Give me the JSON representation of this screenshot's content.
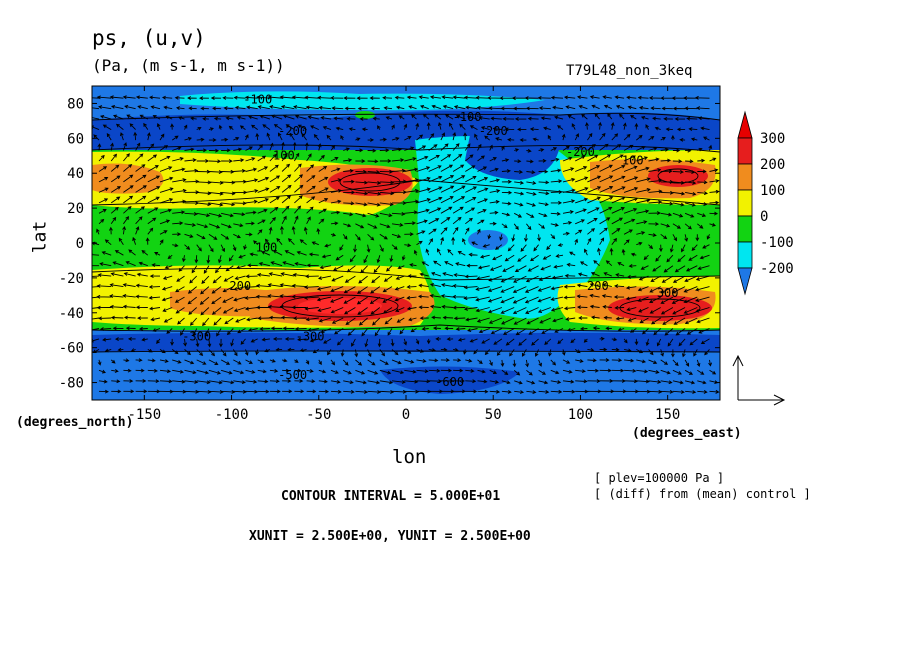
{
  "chart_data": {
    "type": "heatmap",
    "title": "ps, (u,v)",
    "subtitle": "(Pa, (m s-1, m s-1))",
    "run_label": "T79L48_non_3keq",
    "xlabel": "lon",
    "ylabel": "lat",
    "x_units_label": "(degrees_east)",
    "y_units_label": "(degrees_north)",
    "xlim": [
      -180,
      180
    ],
    "ylim": [
      -90,
      90
    ],
    "xticks": [
      -150,
      -100,
      -50,
      0,
      50,
      100,
      150
    ],
    "yticks": [
      -80,
      -60,
      -40,
      -20,
      0,
      20,
      40,
      60,
      80
    ],
    "colorbar": {
      "levels": [
        -200,
        -100,
        0,
        100,
        200,
        300
      ],
      "colors": [
        "#1e78e6",
        "#00e6f0",
        "#12d312",
        "#f2f200",
        "#f08c1e",
        "#e61e1e",
        "#0a46c8",
        "#e60000"
      ]
    },
    "contour_labels": [
      {
        "text": "-100",
        "lon": -85,
        "lat": 80
      },
      {
        "text": "-200",
        "lon": -65,
        "lat": 62
      },
      {
        "text": "-100",
        "lon": 35,
        "lat": 70
      },
      {
        "text": "-200",
        "lon": 50,
        "lat": 62
      },
      {
        "text": "-200",
        "lon": 100,
        "lat": 50
      },
      {
        "text": "100",
        "lon": -70,
        "lat": 48
      },
      {
        "text": "100",
        "lon": 130,
        "lat": 45
      },
      {
        "text": "100",
        "lon": -80,
        "lat": -5
      },
      {
        "text": "200",
        "lon": -95,
        "lat": -27
      },
      {
        "text": "200",
        "lon": 110,
        "lat": -27
      },
      {
        "text": "300",
        "lon": 150,
        "lat": -31
      },
      {
        "text": "-300",
        "lon": -120,
        "lat": -56
      },
      {
        "text": "-300",
        "lon": -55,
        "lat": -56
      },
      {
        "text": "-500",
        "lon": -65,
        "lat": -78
      },
      {
        "text": "-600",
        "lon": 25,
        "lat": -82
      }
    ],
    "annotations": {
      "plev": "[ plev=100000 Pa ]",
      "diff": "[ (diff) from (mean) control ]",
      "contour_interval": "CONTOUR INTERVAL = 5.000E+01",
      "vector_units": "XUNIT = 2.500E+00, YUNIT = 2.500E+00"
    }
  }
}
